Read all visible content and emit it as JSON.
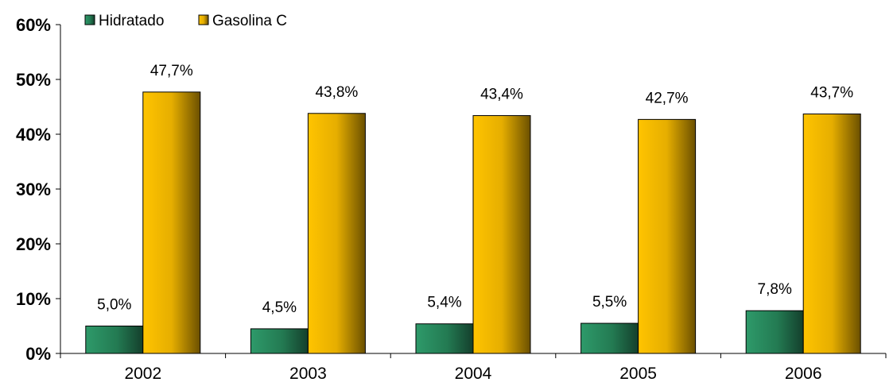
{
  "chart_data": {
    "type": "bar",
    "categories": [
      "2002",
      "2003",
      "2004",
      "2005",
      "2006"
    ],
    "series": [
      {
        "name": "Hidratado",
        "values": [
          5.0,
          4.5,
          5.4,
          5.5,
          7.8
        ],
        "labels": [
          "5,0%",
          "4,5%",
          "5,4%",
          "5,5%",
          "7,8%"
        ],
        "color": "#2E8B57"
      },
      {
        "name": "Gasolina C",
        "values": [
          47.7,
          43.8,
          43.4,
          42.7,
          43.7
        ],
        "labels": [
          "47,7%",
          "43,8%",
          "43,4%",
          "42,7%",
          "43,7%"
        ],
        "color": "#FFC000"
      }
    ],
    "ylim": [
      0,
      60
    ],
    "yticks": [
      0,
      10,
      20,
      30,
      40,
      50,
      60
    ],
    "ytick_labels": [
      "0%",
      "10%",
      "20%",
      "30%",
      "40%",
      "50%",
      "60%"
    ],
    "grid": false,
    "legend_position": "top-left",
    "title": "",
    "xlabel": "",
    "ylabel": ""
  }
}
